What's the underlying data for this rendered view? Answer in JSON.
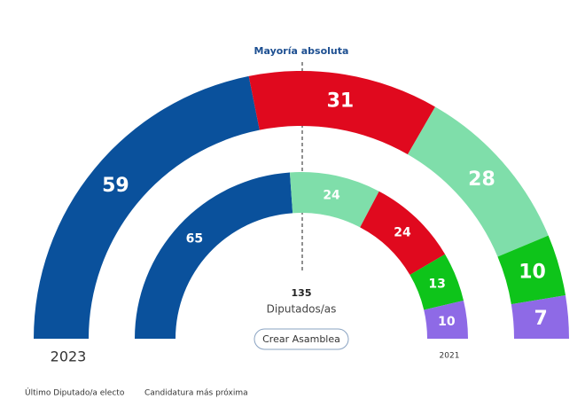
{
  "chart_data": [
    {
      "type": "semicircle",
      "label": "2023",
      "values": [
        59,
        31,
        28,
        10,
        7
      ],
      "colors": [
        "#0a519c",
        "#e0091e",
        "#7fdeaa",
        "#0ec41a",
        "#8e6ae6"
      ],
      "total": 135,
      "total_label": "Diputados/as"
    },
    {
      "type": "semicircle",
      "label": "2021",
      "values": [
        65,
        24,
        24,
        13,
        10
      ],
      "colors": [
        "#0a519c",
        "#7fdeaa",
        "#e0091e",
        "#0ec41a",
        "#8e6ae6"
      ]
    }
  ],
  "annotation": "Mayoría absoluta",
  "button": "Crear Asamblea",
  "legend": [
    "Último Diputado/a electo",
    "Candidatura más próxima"
  ]
}
